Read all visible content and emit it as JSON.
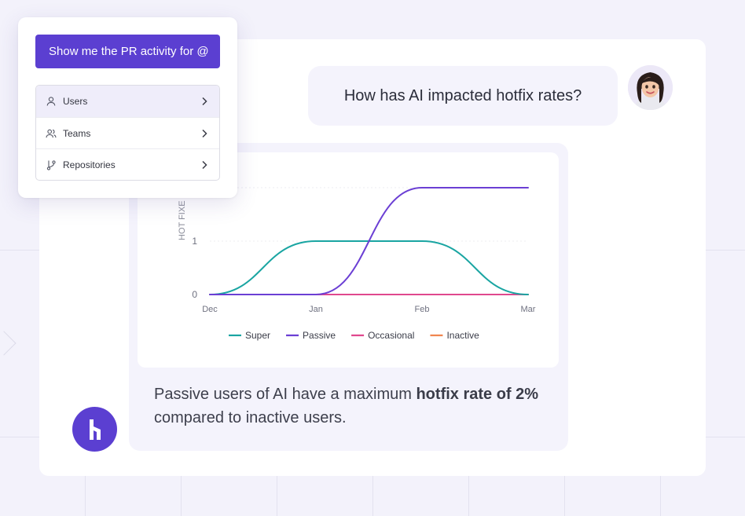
{
  "menu": {
    "prompt_label": "Show me the PR activity for @",
    "items": [
      {
        "label": "Users",
        "icon": "user-icon"
      },
      {
        "label": "Teams",
        "icon": "users-icon"
      },
      {
        "label": "Repositories",
        "icon": "git-branch-icon"
      }
    ]
  },
  "chat": {
    "question": "How has AI impacted hotfix rates?",
    "answer_part1": "Passive users of AI have a maximum ",
    "answer_bold1": "hotfix rate of 2%",
    "answer_part2": " compared to inactive users."
  },
  "colors": {
    "accent": "#5b3fd1",
    "super": "#1aa5a2",
    "passive": "#6b3fd4",
    "occasional": "#e0488e",
    "inactive": "#f08650"
  },
  "chart_data": {
    "type": "line",
    "ylabel": "HOT FIXE",
    "x_ticks": [
      "Dec",
      "Jan",
      "Feb",
      "Mar"
    ],
    "y_ticks": [
      0,
      1
    ],
    "ylim": [
      0,
      2
    ],
    "grid": true,
    "legend_position": "bottom",
    "series": [
      {
        "name": "Super",
        "color": "#1aa5a2",
        "points": [
          [
            0,
            0
          ],
          [
            1,
            1
          ],
          [
            2,
            1
          ],
          [
            3,
            0
          ]
        ]
      },
      {
        "name": "Passive",
        "color": "#6b3fd4",
        "points": [
          [
            0,
            0
          ],
          [
            1,
            0
          ],
          [
            2,
            2
          ],
          [
            3,
            2
          ]
        ]
      },
      {
        "name": "Occasional",
        "color": "#e0488e",
        "points": [
          [
            0,
            0
          ],
          [
            1,
            0
          ],
          [
            2,
            0
          ],
          [
            3,
            0
          ]
        ]
      },
      {
        "name": "Inactive",
        "color": "#f08650",
        "points": [
          [
            0,
            0
          ],
          [
            1,
            0
          ],
          [
            2,
            0
          ],
          [
            3,
            0
          ]
        ]
      }
    ]
  }
}
